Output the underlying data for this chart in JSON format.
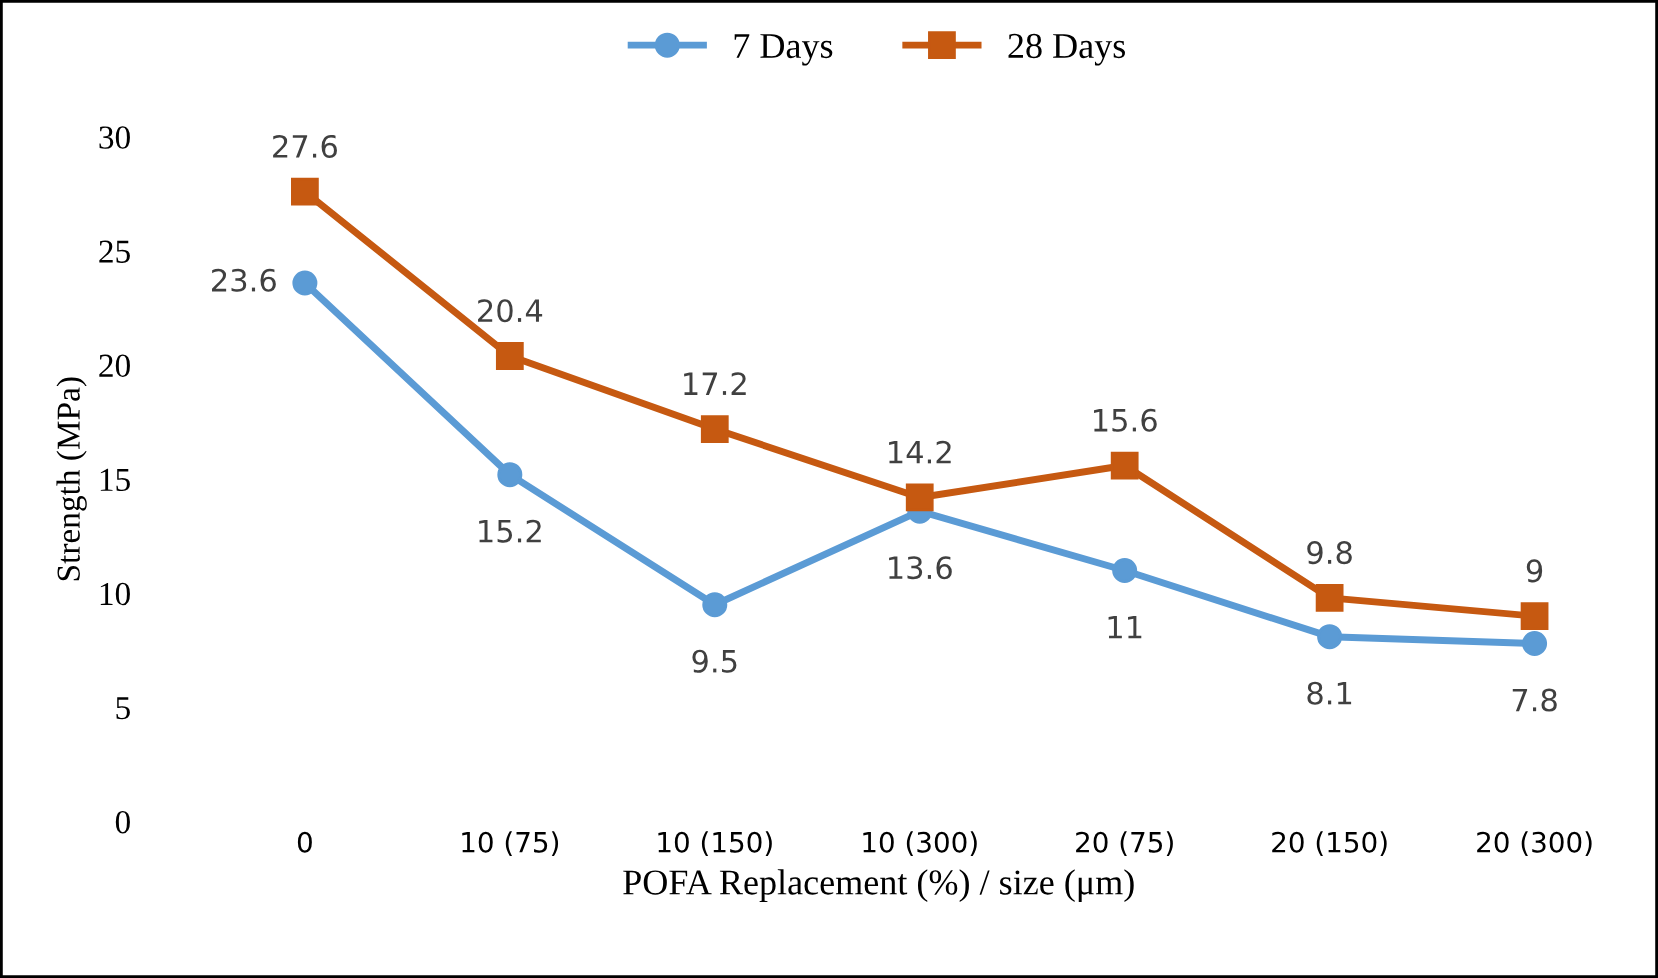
{
  "chart_data": {
    "type": "line",
    "xlabel": "POFA Replacement (%) / size (μm)",
    "ylabel": "Strength (MPa)",
    "categories": [
      "0",
      "10 (75)",
      "10 (150)",
      "10 (300)",
      "20 (75)",
      "20 (150)",
      "20 (300)"
    ],
    "series": [
      {
        "name": "7 Days",
        "color": "#5b9bd5",
        "marker": "circle",
        "values": [
          23.6,
          15.2,
          9.5,
          13.6,
          11,
          8.1,
          7.8
        ]
      },
      {
        "name": "28 Days",
        "color": "#c65911",
        "marker": "square",
        "values": [
          27.6,
          20.4,
          17.2,
          14.2,
          15.6,
          9.8,
          9
        ]
      }
    ],
    "ylim": [
      0,
      30
    ],
    "yticks": [
      0,
      5,
      10,
      15,
      20,
      25,
      30
    ],
    "grid": false,
    "legend": "top",
    "data_labels": true
  }
}
